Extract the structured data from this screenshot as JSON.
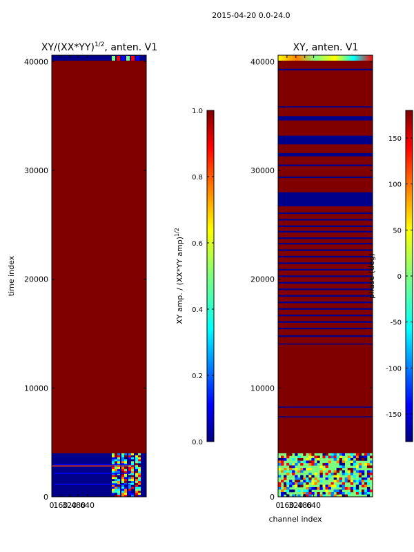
{
  "figure_title": "2015-04-20 0.0-24.0",
  "colors": {
    "dark_red": "#800000",
    "dark_blue": "#00008b",
    "jet": [
      "#00007f",
      "#0000ff",
      "#007fff",
      "#00ffff",
      "#7fff7f",
      "#ffff00",
      "#ff7f00",
      "#ff0000",
      "#7f0000"
    ]
  },
  "chart_data": [
    {
      "type": "heatmap",
      "title_main": "XY/(XX*YY)",
      "title_sup": "1/2",
      "title_tail": ", anten. V1",
      "xlabel": "",
      "ylabel": "time index",
      "x_ticks": [
        "0",
        "160",
        "320",
        "480",
        "640"
      ],
      "x_range": [
        0,
        1700
      ],
      "y_ticks": [
        "0",
        "10000",
        "20000",
        "30000",
        "40000"
      ],
      "y_range": [
        0,
        40600
      ],
      "colorbar": {
        "label_main": "XY amp. / (XX*YY amp)",
        "label_sup": "1/2",
        "ticks": [
          "0.0",
          "0.2",
          "0.4",
          "0.6",
          "0.8",
          "1.0"
        ],
        "range": [
          0.0,
          1.0
        ]
      },
      "regions": [
        {
          "desc": "saturated block",
          "y": [
            4000,
            40100
          ],
          "value": 1.0
        },
        {
          "desc": "low-amplitude region",
          "y": [
            0,
            4000
          ],
          "value": 0.0
        },
        {
          "desc": "top low-amplitude band",
          "y": [
            40100,
            40600
          ],
          "value": 0.0
        }
      ]
    },
    {
      "type": "heatmap",
      "title_main": "XY, anten. V1",
      "xlabel": "channel index",
      "ylabel": "",
      "x_ticks": [
        "0",
        "160",
        "320",
        "480",
        "640"
      ],
      "x_range": [
        0,
        1700
      ],
      "y_ticks": [
        "0",
        "10000",
        "20000",
        "30000",
        "40000"
      ],
      "y_range": [
        0,
        40600
      ],
      "colorbar": {
        "label_main": "phase (deg)",
        "ticks": [
          "-150",
          "-100",
          "-50",
          "0",
          "50",
          "100",
          "150"
        ],
        "range": [
          -180,
          180
        ]
      },
      "blue_bands": [
        [
          39200,
          39350
        ],
        [
          35800,
          35900
        ],
        [
          34600,
          35000
        ],
        [
          32400,
          33200
        ],
        [
          31300,
          31600
        ],
        [
          30400,
          30550
        ],
        [
          29300,
          29450
        ],
        [
          27800,
          28000
        ],
        [
          26700,
          27900
        ],
        [
          26000,
          26150
        ],
        [
          25400,
          25550
        ],
        [
          24800,
          24950
        ],
        [
          24300,
          24450
        ],
        [
          23700,
          23850
        ],
        [
          23200,
          23350
        ],
        [
          22600,
          22750
        ],
        [
          22000,
          22150
        ],
        [
          21400,
          21550
        ],
        [
          20800,
          20950
        ],
        [
          20200,
          20350
        ],
        [
          19600,
          19750
        ],
        [
          19000,
          19150
        ],
        [
          18400,
          18550
        ],
        [
          17800,
          17950
        ],
        [
          17200,
          17350
        ],
        [
          16600,
          16750
        ],
        [
          16000,
          16150
        ],
        [
          15400,
          15550
        ],
        [
          14700,
          14850
        ],
        [
          14000,
          14100
        ],
        [
          8200,
          8300
        ],
        [
          7300,
          7400
        ]
      ]
    }
  ]
}
